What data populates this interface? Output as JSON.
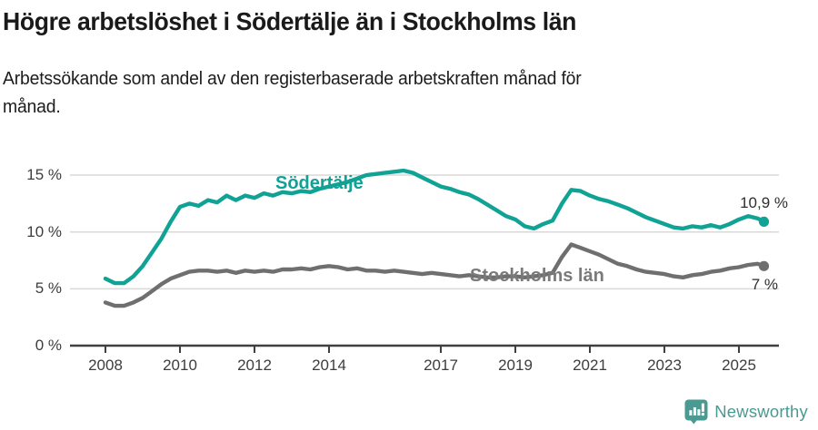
{
  "header": {
    "title": "Högre arbetslöshet i Södertälje än i Stockholms län",
    "subtitle_line1": "Arbetssökande som andel av den registerbaserade arbetskraften månad för",
    "subtitle_line2": "månad."
  },
  "colors": {
    "sodertalje_line": "#10A295",
    "stockholm_line": "#6F6F6F",
    "stockholm_label": "#7A7A7A",
    "gridline": "#D9D9D9",
    "axis": "#3F3F3F",
    "brand_teal": "#4A9A92"
  },
  "chart_data": {
    "type": "line",
    "title": "Högre arbetslöshet i Södertälje än i Stockholms län",
    "xlabel": "",
    "ylabel": "Arbetssökande som andel av den registerbaserade arbetskraften",
    "grid": true,
    "legend_position": "inline-labels",
    "ylim": [
      0,
      16.6
    ],
    "xlim": [
      2007.05,
      2026.05
    ],
    "yticks": [
      {
        "value": 0,
        "label": "0 %"
      },
      {
        "value": 5,
        "label": "5 %"
      },
      {
        "value": 10,
        "label": "10 %"
      },
      {
        "value": 15,
        "label": "15 %"
      }
    ],
    "xticks": [
      {
        "value": 2008,
        "label": "2008"
      },
      {
        "value": 2010,
        "label": "2010"
      },
      {
        "value": 2012,
        "label": "2012"
      },
      {
        "value": 2014,
        "label": "2014"
      },
      {
        "value": 2017,
        "label": "2017"
      },
      {
        "value": 2019,
        "label": "2019"
      },
      {
        "value": 2021,
        "label": "2021"
      },
      {
        "value": 2023,
        "label": "2023"
      },
      {
        "value": 2025,
        "label": "2025"
      }
    ],
    "x": [
      2008.0,
      2008.25,
      2008.5,
      2008.75,
      2009.0,
      2009.25,
      2009.5,
      2009.75,
      2010.0,
      2010.25,
      2010.5,
      2010.75,
      2011.0,
      2011.25,
      2011.5,
      2011.75,
      2012.0,
      2012.25,
      2012.5,
      2012.75,
      2013.0,
      2013.25,
      2013.5,
      2013.75,
      2014.0,
      2014.25,
      2014.5,
      2014.75,
      2015.0,
      2015.25,
      2015.5,
      2015.75,
      2016.0,
      2016.25,
      2016.5,
      2016.75,
      2017.0,
      2017.25,
      2017.5,
      2017.75,
      2018.0,
      2018.25,
      2018.5,
      2018.75,
      2019.0,
      2019.25,
      2019.5,
      2019.75,
      2020.0,
      2020.25,
      2020.5,
      2020.75,
      2021.0,
      2021.25,
      2021.5,
      2021.75,
      2022.0,
      2022.25,
      2022.5,
      2022.75,
      2023.0,
      2023.25,
      2023.5,
      2023.75,
      2024.0,
      2024.25,
      2024.5,
      2024.75,
      2025.0,
      2025.25,
      2025.5,
      2025.67
    ],
    "series": [
      {
        "name": "Södertälje",
        "color": "#10A295",
        "end_label": "10,9 %",
        "end_value": 10.9,
        "values": [
          5.9,
          5.5,
          5.5,
          6.1,
          7.0,
          8.2,
          9.4,
          10.9,
          12.2,
          12.5,
          12.3,
          12.8,
          12.6,
          13.2,
          12.8,
          13.2,
          13.0,
          13.4,
          13.2,
          13.5,
          13.4,
          13.6,
          13.5,
          13.8,
          14.0,
          14.2,
          14.4,
          14.7,
          15.0,
          15.1,
          15.2,
          15.3,
          15.4,
          15.2,
          14.8,
          14.4,
          14.0,
          13.8,
          13.5,
          13.3,
          12.9,
          12.4,
          11.9,
          11.4,
          11.1,
          10.5,
          10.3,
          10.7,
          11.0,
          12.5,
          13.7,
          13.6,
          13.2,
          12.9,
          12.7,
          12.4,
          12.1,
          11.7,
          11.3,
          11.0,
          10.7,
          10.4,
          10.3,
          10.5,
          10.4,
          10.6,
          10.4,
          10.7,
          11.1,
          11.4,
          11.2,
          10.9
        ]
      },
      {
        "name": "Stockholms län",
        "color": "#6F6F6F",
        "end_label": "7 %",
        "end_value": 7.0,
        "values": [
          3.8,
          3.5,
          3.5,
          3.8,
          4.2,
          4.8,
          5.4,
          5.9,
          6.2,
          6.5,
          6.6,
          6.6,
          6.5,
          6.6,
          6.4,
          6.6,
          6.5,
          6.6,
          6.5,
          6.7,
          6.7,
          6.8,
          6.7,
          6.9,
          7.0,
          6.9,
          6.7,
          6.8,
          6.6,
          6.6,
          6.5,
          6.6,
          6.5,
          6.4,
          6.3,
          6.4,
          6.3,
          6.2,
          6.1,
          6.2,
          6.1,
          6.0,
          6.0,
          6.1,
          6.1,
          6.0,
          6.1,
          6.2,
          6.4,
          7.8,
          8.9,
          8.6,
          8.3,
          8.0,
          7.6,
          7.2,
          7.0,
          6.7,
          6.5,
          6.4,
          6.3,
          6.1,
          6.0,
          6.2,
          6.3,
          6.5,
          6.6,
          6.8,
          6.9,
          7.1,
          7.2,
          7.0
        ]
      }
    ]
  },
  "footer": {
    "brand": "Newsworthy"
  }
}
